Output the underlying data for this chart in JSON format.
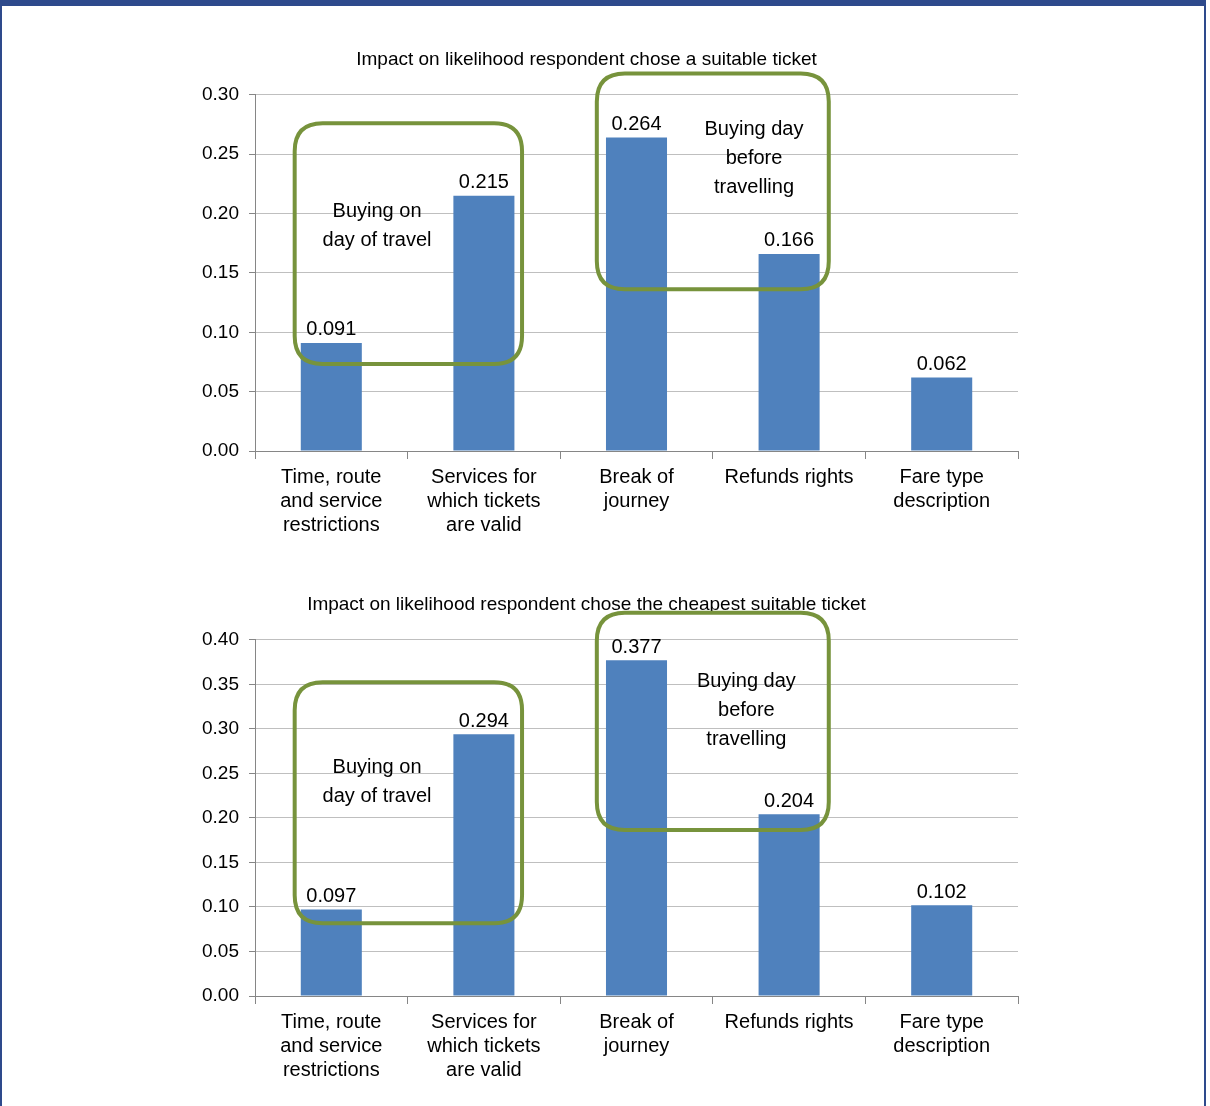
{
  "chart_data": [
    {
      "type": "bar",
      "title": "Impact on likelihood respondent chose a suitable ticket",
      "categories": [
        "Time, route and service restrictions",
        "Services for which tickets are valid",
        "Break of journey",
        "Refunds rights",
        "Fare type description"
      ],
      "values": [
        0.091,
        0.215,
        0.264,
        0.166,
        0.062
      ],
      "color": "#4f81bd",
      "ylim": [
        0,
        0.3
      ],
      "yticks": [
        {
          "value": 0,
          "label": "0.00"
        },
        {
          "value": 0.05,
          "label": "0.05"
        },
        {
          "value": 0.1,
          "label": "0.10"
        },
        {
          "value": 0.15,
          "label": "0.15"
        },
        {
          "value": 0.2,
          "label": "0.20"
        },
        {
          "value": 0.25,
          "label": "0.25"
        },
        {
          "value": 0.3,
          "label": "0.30"
        }
      ],
      "grid": "y",
      "data_labels": true,
      "annotations": [
        "Buying on day of travel",
        "Buying day before travelling"
      ]
    },
    {
      "type": "bar",
      "title": "Impact on likelihood respondent chose the cheapest suitable ticket",
      "categories": [
        "Time, route and service restrictions",
        "Services for which tickets are valid",
        "Break of journey",
        "Refunds rights",
        "Fare type description"
      ],
      "values": [
        0.097,
        0.294,
        0.377,
        0.204,
        0.102
      ],
      "color": "#4f81bd",
      "ylim": [
        0,
        0.4
      ],
      "yticks": [
        {
          "value": 0,
          "label": "0.00"
        },
        {
          "value": 0.05,
          "label": "0.05"
        },
        {
          "value": 0.1,
          "label": "0.10"
        },
        {
          "value": 0.15,
          "label": "0.15"
        },
        {
          "value": 0.2,
          "label": "0.20"
        },
        {
          "value": 0.25,
          "label": "0.25"
        },
        {
          "value": 0.3,
          "label": "0.30"
        },
        {
          "value": 0.35,
          "label": "0.35"
        },
        {
          "value": 0.4,
          "label": "0.40"
        }
      ],
      "grid": "y",
      "data_labels": true,
      "annotations": [
        "Buying on day of travel",
        "Buying day before travelling"
      ]
    }
  ]
}
